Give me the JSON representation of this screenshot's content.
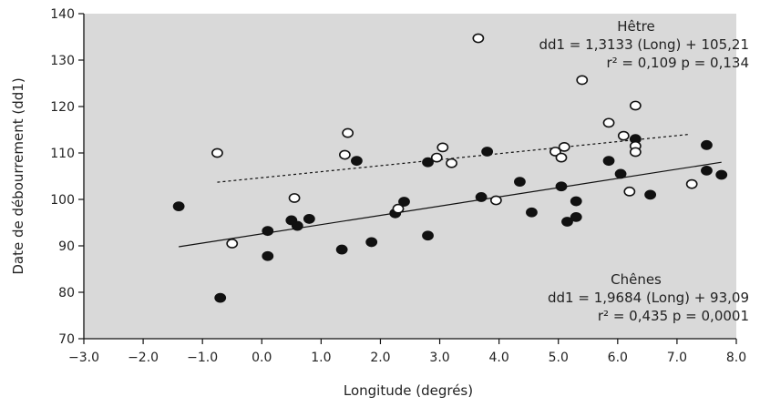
{
  "chart_data": {
    "type": "scatter",
    "title": "",
    "xlabel": "Longitude (degrés)",
    "ylabel": "Date de débourrement (dd1)",
    "xlim": [
      -3.0,
      8.0
    ],
    "ylim": [
      70,
      140
    ],
    "x_ticks": [
      "−3.0",
      "−2.0",
      "−1.0",
      "0.0",
      "1.0",
      "2.0",
      "3.0",
      "4.0",
      "5.0",
      "6.0",
      "7.0",
      "8.0"
    ],
    "y_ticks": [
      "70",
      "80",
      "90",
      "100",
      "110",
      "120",
      "130",
      "140"
    ],
    "grid": false,
    "background": "#d9d9d9",
    "series": [
      {
        "name": "Chênes",
        "marker": "filled",
        "color": "#111111",
        "points": [
          [
            -1.4,
            98.5
          ],
          [
            -0.7,
            78.8
          ],
          [
            0.1,
            93.2
          ],
          [
            0.1,
            87.8
          ],
          [
            0.5,
            95.5
          ],
          [
            0.6,
            94.3
          ],
          [
            0.8,
            95.8
          ],
          [
            1.35,
            89.2
          ],
          [
            1.6,
            108.3
          ],
          [
            1.85,
            90.8
          ],
          [
            2.25,
            97.0
          ],
          [
            2.4,
            99.5
          ],
          [
            2.8,
            108.0
          ],
          [
            2.8,
            92.2
          ],
          [
            3.7,
            100.5
          ],
          [
            3.8,
            110.3
          ],
          [
            4.35,
            103.8
          ],
          [
            4.55,
            97.2
          ],
          [
            5.05,
            102.8
          ],
          [
            5.15,
            95.2
          ],
          [
            5.3,
            99.6
          ],
          [
            5.3,
            96.2
          ],
          [
            5.85,
            108.3
          ],
          [
            6.05,
            105.5
          ],
          [
            6.3,
            113.0
          ],
          [
            6.55,
            101.0
          ],
          [
            7.5,
            111.7
          ],
          [
            7.5,
            106.2
          ],
          [
            7.75,
            105.3
          ]
        ],
        "trendline": {
          "x": [
            -1.4,
            7.75
          ],
          "y": [
            89.8,
            108.0
          ],
          "style": "solid"
        },
        "annotation": [
          "Chênes",
          "dd1 = 1,9684 (Long) + 93,09",
          "r² = 0,435   p = 0,0001"
        ]
      },
      {
        "name": "Hêtre",
        "marker": "open",
        "color": "#111111",
        "points": [
          [
            -0.75,
            110.0
          ],
          [
            -0.5,
            90.5
          ],
          [
            0.55,
            100.3
          ],
          [
            1.4,
            109.6
          ],
          [
            1.45,
            114.3
          ],
          [
            2.3,
            98.0
          ],
          [
            2.95,
            109.0
          ],
          [
            3.05,
            111.2
          ],
          [
            3.2,
            107.8
          ],
          [
            3.65,
            134.7
          ],
          [
            3.95,
            99.8
          ],
          [
            4.95,
            110.3
          ],
          [
            5.05,
            109.0
          ],
          [
            5.1,
            111.3
          ],
          [
            5.4,
            125.7
          ],
          [
            5.85,
            116.5
          ],
          [
            6.1,
            113.7
          ],
          [
            6.2,
            101.7
          ],
          [
            6.3,
            120.2
          ],
          [
            6.3,
            111.5
          ],
          [
            6.3,
            110.2
          ],
          [
            7.25,
            103.3
          ]
        ],
        "trendline": {
          "x": [
            -0.75,
            7.2
          ],
          "y": [
            103.7,
            114.0
          ],
          "style": "dotted"
        },
        "annotation": [
          "Hêtre",
          "dd1 = 1,3133 (Long) + 105,21",
          "r² = 0,109   p = 0,134"
        ]
      }
    ]
  }
}
